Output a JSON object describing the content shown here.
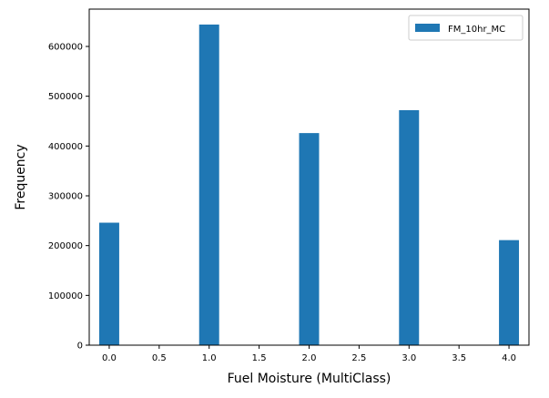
{
  "chart_data": {
    "type": "bar",
    "title": "",
    "xlabel": "Fuel Moisture (MultiClass)",
    "ylabel": "Frequency",
    "xlim": [
      -0.2,
      4.2
    ],
    "ylim": [
      0,
      675000
    ],
    "bar_width": 0.2,
    "bar_color": "#1f77b4",
    "grid": false,
    "legend_placement": "top-right",
    "series": [
      {
        "name": "FM_10hr_MC",
        "bins": [
          {
            "x": 0.0,
            "value": 246000
          },
          {
            "x": 1.0,
            "value": 644000
          },
          {
            "x": 2.0,
            "value": 426000
          },
          {
            "x": 3.0,
            "value": 472000
          },
          {
            "x": 4.0,
            "value": 211000
          }
        ]
      }
    ],
    "x_ticks": [
      {
        "value": 0.0,
        "label": "0.0"
      },
      {
        "value": 0.5,
        "label": "0.5"
      },
      {
        "value": 1.0,
        "label": "1.0"
      },
      {
        "value": 1.5,
        "label": "1.5"
      },
      {
        "value": 2.0,
        "label": "2.0"
      },
      {
        "value": 2.5,
        "label": "2.5"
      },
      {
        "value": 3.0,
        "label": "3.0"
      },
      {
        "value": 3.5,
        "label": "3.5"
      },
      {
        "value": 4.0,
        "label": "4.0"
      }
    ],
    "y_ticks": [
      {
        "value": 0,
        "label": "0"
      },
      {
        "value": 100000,
        "label": "100000"
      },
      {
        "value": 200000,
        "label": "200000"
      },
      {
        "value": 300000,
        "label": "300000"
      },
      {
        "value": 400000,
        "label": "400000"
      },
      {
        "value": 500000,
        "label": "500000"
      },
      {
        "value": 600000,
        "label": "600000"
      }
    ]
  }
}
